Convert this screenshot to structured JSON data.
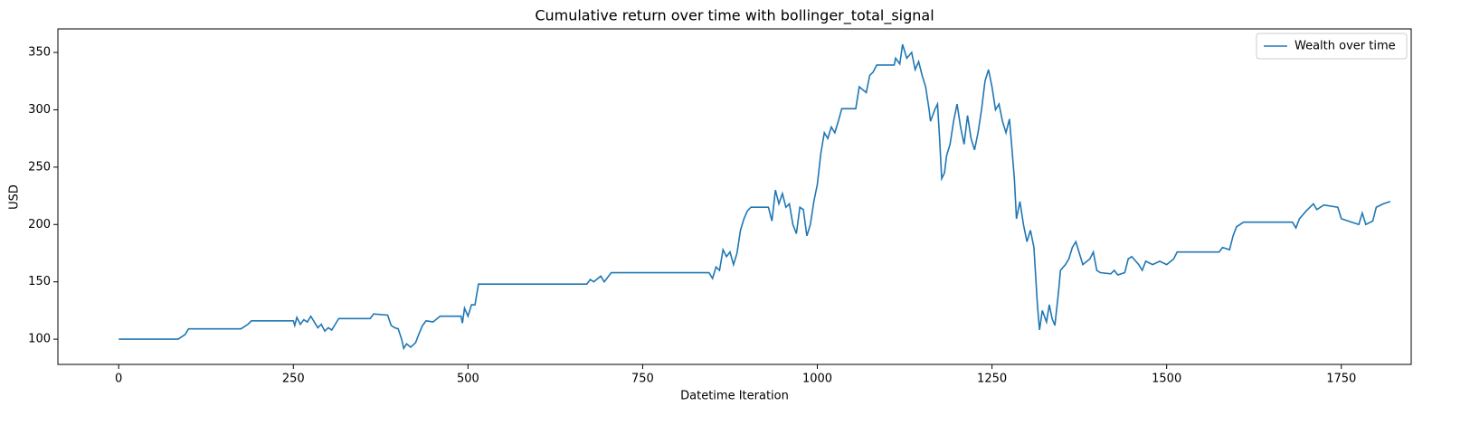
{
  "chart_data": {
    "type": "line",
    "title": "Cumulative return over time with bollinger_total_signal",
    "x_label": "Datetime Iteration",
    "y_label": "USD",
    "xlim": [
      -87,
      1850
    ],
    "ylim": [
      78,
      370.5
    ],
    "xticks": [
      0,
      250,
      500,
      750,
      1000,
      1250,
      1500,
      1750
    ],
    "yticks": [
      100,
      150,
      200,
      250,
      300,
      350
    ],
    "legend": "upper right",
    "grid": false,
    "series": [
      {
        "name": "Wealth over time",
        "color": "#1f77b4",
        "x": [
          0,
          85,
          90,
          95,
          100,
          175,
          185,
          190,
          250,
          252,
          255,
          260,
          265,
          270,
          275,
          285,
          290,
          295,
          300,
          305,
          310,
          315,
          360,
          365,
          385,
          390,
          395,
          400,
          405,
          408,
          412,
          418,
          425,
          430,
          435,
          440,
          450,
          460,
          490,
          492,
          495,
          500,
          505,
          510,
          515,
          670,
          675,
          680,
          690,
          695,
          705,
          845,
          850,
          855,
          860,
          865,
          870,
          875,
          880,
          885,
          890,
          895,
          900,
          905,
          930,
          935,
          940,
          945,
          950,
          955,
          960,
          965,
          970,
          975,
          980,
          985,
          990,
          995,
          1000,
          1005,
          1010,
          1015,
          1020,
          1025,
          1030,
          1035,
          1055,
          1060,
          1070,
          1075,
          1080,
          1085,
          1110,
          1112,
          1118,
          1122,
          1128,
          1135,
          1140,
          1145,
          1150,
          1155,
          1160,
          1162,
          1168,
          1172,
          1175,
          1178,
          1182,
          1185,
          1190,
          1195,
          1200,
          1205,
          1210,
          1215,
          1220,
          1225,
          1230,
          1235,
          1240,
          1245,
          1250,
          1255,
          1260,
          1265,
          1270,
          1275,
          1278,
          1282,
          1285,
          1290,
          1295,
          1300,
          1305,
          1310,
          1315,
          1318,
          1322,
          1328,
          1332,
          1336,
          1340,
          1345,
          1348,
          1355,
          1360,
          1365,
          1370,
          1375,
          1380,
          1390,
          1395,
          1400,
          1405,
          1420,
          1425,
          1430,
          1440,
          1445,
          1450,
          1460,
          1465,
          1470,
          1480,
          1490,
          1500,
          1510,
          1515,
          1575,
          1580,
          1590,
          1595,
          1600,
          1610,
          1680,
          1685,
          1690,
          1700,
          1710,
          1715,
          1725,
          1745,
          1750,
          1760,
          1775,
          1780,
          1785,
          1795,
          1800,
          1810,
          1820
        ],
        "values": [
          100,
          100,
          102,
          104,
          109,
          109,
          113,
          116,
          116,
          112,
          119,
          113,
          117,
          115,
          120,
          110,
          113,
          107,
          110,
          108,
          113,
          118,
          118,
          122,
          121,
          112,
          110,
          109,
          100,
          92,
          96,
          93,
          97,
          105,
          112,
          116,
          115,
          120,
          120,
          114,
          127,
          120,
          130,
          130,
          148,
          148,
          152,
          150,
          155,
          150,
          158,
          158,
          153,
          163,
          160,
          178,
          172,
          176,
          165,
          175,
          195,
          205,
          212,
          215,
          215,
          203,
          230,
          218,
          227,
          215,
          218,
          200,
          192,
          215,
          213,
          190,
          200,
          220,
          235,
          262,
          280,
          275,
          285,
          280,
          290,
          301,
          301,
          320,
          315,
          330,
          333,
          339,
          339,
          345,
          340,
          357,
          345,
          350,
          335,
          342,
          330,
          320,
          300,
          290,
          300,
          305,
          275,
          240,
          245,
          260,
          270,
          290,
          305,
          285,
          270,
          295,
          275,
          265,
          280,
          300,
          325,
          335,
          320,
          300,
          305,
          290,
          280,
          292,
          270,
          240,
          205,
          220,
          200,
          185,
          195,
          180,
          130,
          108,
          125,
          115,
          130,
          118,
          112,
          140,
          160,
          165,
          170,
          180,
          185,
          175,
          165,
          170,
          176,
          160,
          158,
          157,
          160,
          156,
          158,
          170,
          172,
          165,
          160,
          168,
          165,
          168,
          165,
          170,
          176,
          176,
          180,
          178,
          190,
          198,
          202,
          202,
          197,
          205,
          212,
          218,
          213,
          217,
          215,
          205,
          203,
          200,
          210,
          200,
          203,
          215,
          218,
          220
        ]
      }
    ]
  }
}
